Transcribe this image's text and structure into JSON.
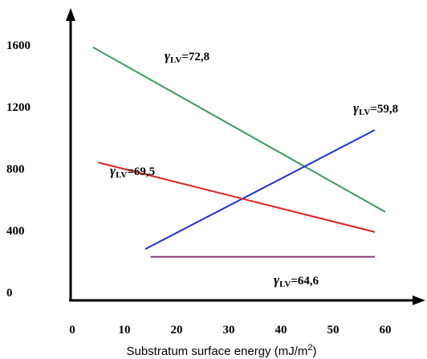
{
  "chart_data": {
    "type": "line",
    "title": "",
    "xlabel": "Substratum surface energy (mJ/m",
    "xlabel_sup": "2",
    "xlabel_end": ")",
    "ylabel": "",
    "xlim": [
      0,
      62
    ],
    "ylim": [
      -50,
      1800
    ],
    "x_ticks": [
      "0",
      "10",
      "20",
      "30",
      "40",
      "50",
      "60"
    ],
    "y_ticks": [
      "0",
      "400",
      "800",
      "1200",
      "1600"
    ],
    "grid": false,
    "series": [
      {
        "color": "#3a9a5e",
        "points": [
          [
            4,
            1585
          ],
          [
            60,
            520
          ]
        ]
      },
      {
        "color": "#1f2fd0",
        "points": [
          [
            14,
            280
          ],
          [
            58,
            1050
          ]
        ]
      },
      {
        "color": "#e0211f",
        "points": [
          [
            5,
            840
          ],
          [
            58,
            390
          ]
        ]
      },
      {
        "color": "#8a3d78",
        "points": [
          [
            15,
            230
          ],
          [
            58,
            230
          ]
        ]
      }
    ],
    "annotations": [
      {
        "symbol": "γ",
        "sub": "LV",
        "value": "=72,8"
      },
      {
        "symbol": "γ",
        "sub": "LV",
        "value": "=59,8"
      },
      {
        "symbol": "γ",
        "sub": "LV",
        "value": "=69,5"
      },
      {
        "symbol": "γ",
        "sub": "LV",
        "value": "=64,6"
      }
    ]
  }
}
